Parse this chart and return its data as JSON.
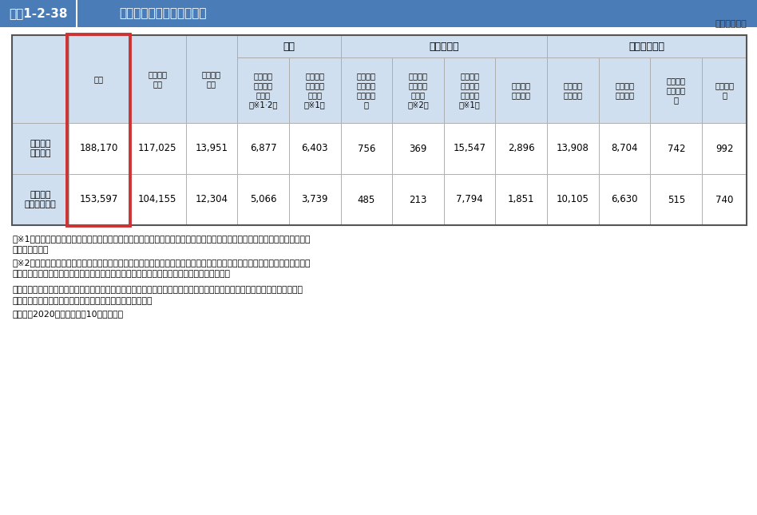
{
  "title_label": "図表1-2-38",
  "title_text": "介護支援専門員の従事者数",
  "title_bg": "#4a7db8",
  "unit_text": "（単位：人）",
  "header_bg": "#d0dff0",
  "white_bg": "#ffffff",
  "outer_border_color": "#777777",
  "highlight_border_color": "#cc3333",
  "grid_color": "#aaaaaa",
  "group_labels": [
    "居宅",
    "地域密着型",
    "介護保険施設"
  ],
  "group_spans": [
    2,
    4,
    4
  ],
  "fixed_col_count": 3,
  "col_headers": [
    "合計",
    "居宅介護\n支援",
    "介護予防\n支援",
    "特定施設\n入居者生\n活介護\n（※1·2）",
    "小規模多\n機能型居\n宅介護\n（※1）",
    "看護小規\n模多機能\n型居宅介\n護",
    "特定施設\n入居者生\n活介護\n（※2）",
    "認知症対\n応型共同\n生活介護\n（※1）",
    "介護老人\n福祉施設",
    "介護老人\n福祉施設",
    "介護老人\n保健施設",
    "介護療養\n型医療施\n設",
    "介護医療\n院"
  ],
  "row_headers": [
    "従事者数\n（実数）",
    "従事者数\n（常勤換算）"
  ],
  "data": [
    [
      "188,170",
      "117,025",
      "13,951",
      "6,877",
      "6,403",
      "756",
      "369",
      "15,547",
      "2,896",
      "13,908",
      "8,704",
      "742",
      "992"
    ],
    [
      "153,597",
      "104,155",
      "12,304",
      "5,066",
      "3,739",
      "485",
      "213",
      "7,794",
      "1,851",
      "10,105",
      "6,630",
      "515",
      "740"
    ]
  ],
  "col_widths_rel": [
    4.8,
    5.2,
    4.8,
    4.4,
    4.4,
    4.4,
    4.4,
    4.4,
    4.4,
    4.4,
    4.4,
    4.4,
    4.4,
    3.8
  ],
  "footnote1": "（※1）　介護予防サービスを一体的に行っている事業所の従事者を含む。また、介護予防サービスのみ行っている事業者は対象外。",
  "footnote2": "（※2）　特定施設入居者生活介護については、計画作成担当者の従事者数。なお、計画作成担当者について、特定施設入居者\n　　　　生活介護では「専らその職務に従事する介護支援専門員であること」とされている。",
  "source_line1": "資料：厚生労働省政策統括官（統計・情報政策、労使関係担当）「令和２年介護サービス施設・事業所調査」により厚生労働",
  "source_line2": "　　　省老健局認知症施策・地域介護推進課において作成。",
  "note_text": "（注）　2020（令和２）年10月１日現在"
}
